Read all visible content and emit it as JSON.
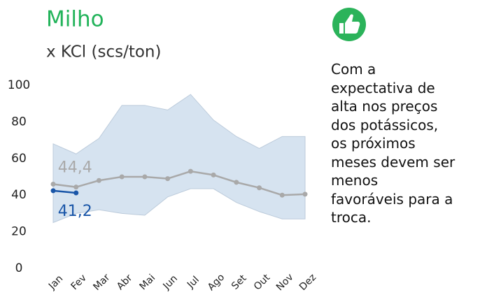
{
  "chart_data": {
    "type": "band_line",
    "title": "Milho",
    "subtitle": "x KCl (scs/ton)",
    "categories": [
      "Jan",
      "Fev",
      "Mar",
      "Abr",
      "Mai",
      "Jun",
      "Jul",
      "Ago",
      "Set",
      "Out",
      "Nov",
      "Dez"
    ],
    "ylim": [
      0,
      100
    ],
    "yticks": [
      0,
      20,
      40,
      60,
      80,
      100
    ],
    "grid": false,
    "band": {
      "color": "#d6e3f0",
      "upper": [
        68,
        62.5,
        71,
        89,
        89,
        86.5,
        95,
        81,
        72,
        65.5,
        72,
        72
      ],
      "lower": [
        25,
        30,
        32,
        30,
        29,
        39,
        43.5,
        43.5,
        36,
        31,
        27,
        27
      ]
    },
    "series": [
      {
        "color": "#a9a9a9",
        "values": [
          46,
          44.4,
          48,
          50,
          50,
          49,
          53,
          51,
          47,
          44,
          40,
          40.5
        ],
        "value_labels": [
          null,
          "44,4",
          null,
          null,
          null,
          null,
          null,
          null,
          null,
          null,
          null,
          null
        ]
      },
      {
        "color": "#1a56a8",
        "values": [
          42.4,
          41.2,
          null,
          null,
          null,
          null,
          null,
          null,
          null,
          null,
          null,
          null
        ],
        "value_labels": [
          null,
          "41,2",
          null,
          null,
          null,
          null,
          null,
          null,
          null,
          null,
          null,
          null
        ]
      }
    ],
    "note_lines": [
      "Com a",
      "expectativa de",
      "alta nos preços",
      "dos potássicos,",
      "os próximos",
      "meses devem ser",
      "menos",
      "favoráveis para a",
      "troca."
    ]
  }
}
